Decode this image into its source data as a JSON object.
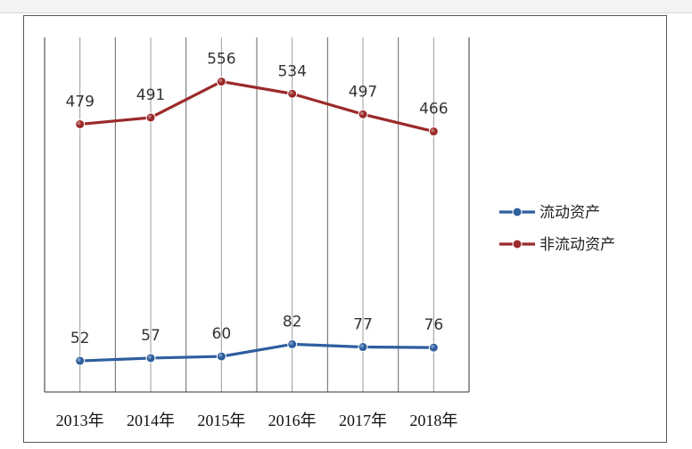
{
  "chart_data": {
    "type": "line",
    "title": "",
    "xlabel": "",
    "ylabel": "",
    "categories": [
      "2013年",
      "2014年",
      "2015年",
      "2016年",
      "2017年",
      "2018年"
    ],
    "ylim": [
      0,
      600
    ],
    "grid": "vertical",
    "legend_position": "right",
    "series": [
      {
        "name": "流动资产",
        "color": "#2e5e9e",
        "values": [
          52,
          57,
          60,
          82,
          77,
          76
        ]
      },
      {
        "name": "非流动资产",
        "color": "#9b2a2a",
        "values": [
          479,
          491,
          556,
          534,
          497,
          466
        ]
      }
    ]
  }
}
